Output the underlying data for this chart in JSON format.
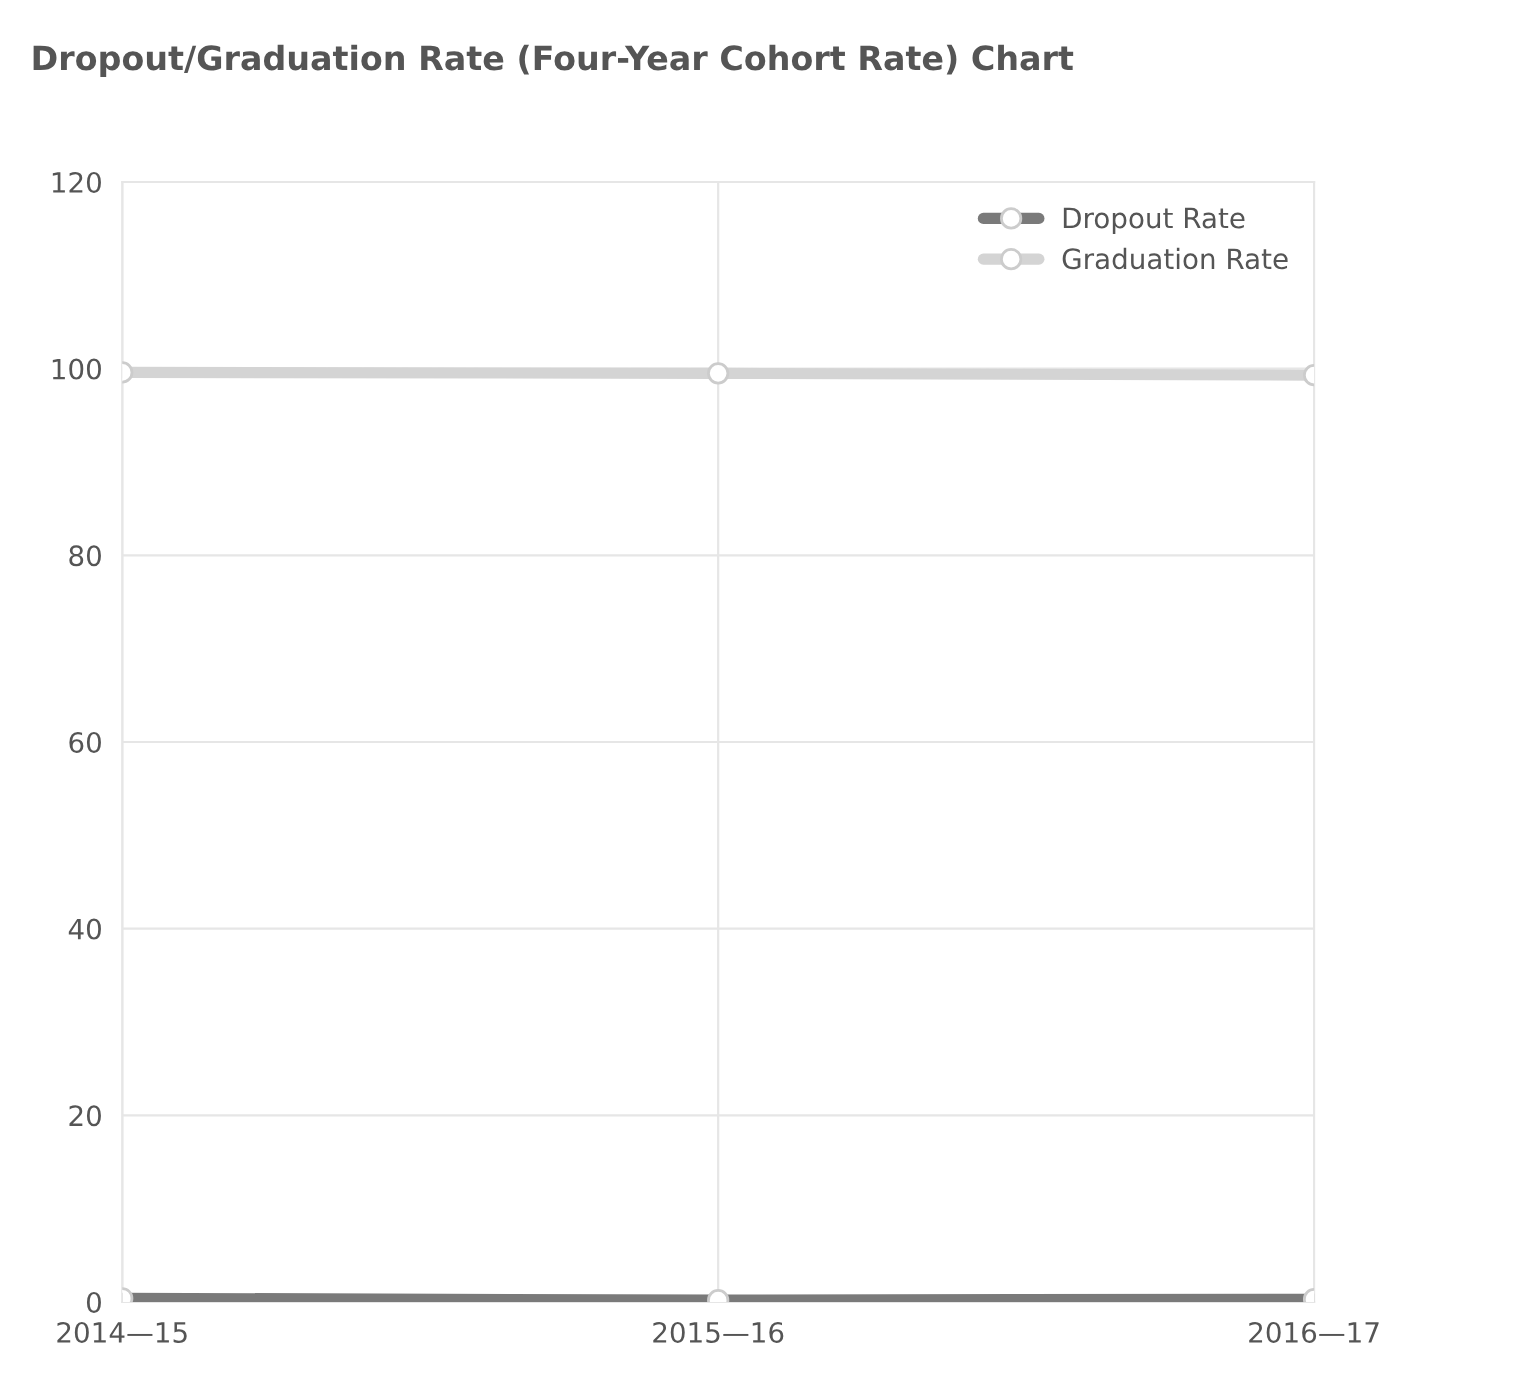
{
  "chart_data": {
    "type": "line",
    "title": "Dropout/Graduation Rate (Four-Year Cohort Rate) Chart",
    "categories": [
      "2014—15",
      "2015—16",
      "2016—17"
    ],
    "series": [
      {
        "name": "Dropout Rate",
        "color": "#7a7a7a",
        "values": [
          0.4,
          0.2,
          0.3
        ]
      },
      {
        "name": "Graduation Rate",
        "color": "#d4d4d4",
        "values": [
          99.6,
          99.5,
          99.3
        ]
      }
    ],
    "ylim": [
      0,
      120
    ],
    "yticks": [
      0,
      20,
      40,
      60,
      80,
      100,
      120
    ],
    "grid": true,
    "legend": "top right",
    "marker": "circle",
    "line_style": "solid"
  }
}
